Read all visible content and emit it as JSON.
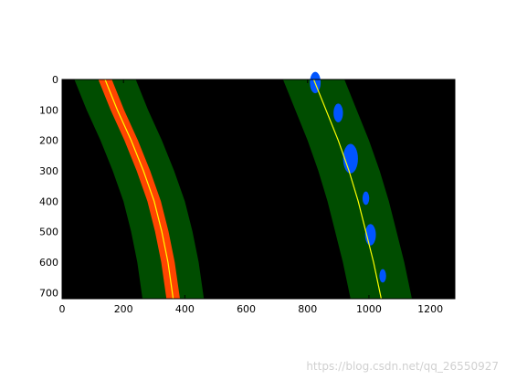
{
  "chart_data": {
    "type": "scatter",
    "title": "",
    "xlabel": "",
    "ylabel": "",
    "xlim": [
      0,
      1280
    ],
    "ylim": [
      720,
      0
    ],
    "x_ticks": [
      0,
      200,
      400,
      600,
      800,
      1000,
      1200
    ],
    "y_ticks": [
      0,
      100,
      200,
      300,
      400,
      500,
      600,
      700
    ],
    "grid": false,
    "background": "black",
    "search_window_margin": 100,
    "series": [
      {
        "role": "left-lane-fit",
        "color": "#ffff00",
        "points": [
          [
            140,
            0
          ],
          [
            180,
            100
          ],
          [
            225,
            200
          ],
          [
            265,
            300
          ],
          [
            300,
            400
          ],
          [
            325,
            500
          ],
          [
            345,
            600
          ],
          [
            362,
            720
          ]
        ]
      },
      {
        "role": "right-lane-fit",
        "color": "#ffff00",
        "points": [
          [
            820,
            0
          ],
          [
            860,
            100
          ],
          [
            900,
            200
          ],
          [
            935,
            300
          ],
          [
            965,
            400
          ],
          [
            990,
            500
          ],
          [
            1015,
            600
          ],
          [
            1040,
            720
          ]
        ]
      },
      {
        "role": "left-lane-pixels",
        "color": "#ff4500",
        "points": [
          [
            140,
            0
          ],
          [
            180,
            100
          ],
          [
            225,
            200
          ],
          [
            265,
            300
          ],
          [
            300,
            400
          ],
          [
            325,
            500
          ],
          [
            345,
            600
          ],
          [
            362,
            720
          ]
        ],
        "half_width": 22
      },
      {
        "role": "right-lane-pixels",
        "color": "#0055ff",
        "blobs": [
          [
            825,
            10,
            16
          ],
          [
            900,
            110,
            14
          ],
          [
            940,
            260,
            22
          ],
          [
            990,
            390,
            10
          ],
          [
            1005,
            510,
            16
          ],
          [
            1045,
            645,
            10
          ]
        ]
      }
    ]
  },
  "watermark": "https://blog.csdn.net/qq_26550927"
}
